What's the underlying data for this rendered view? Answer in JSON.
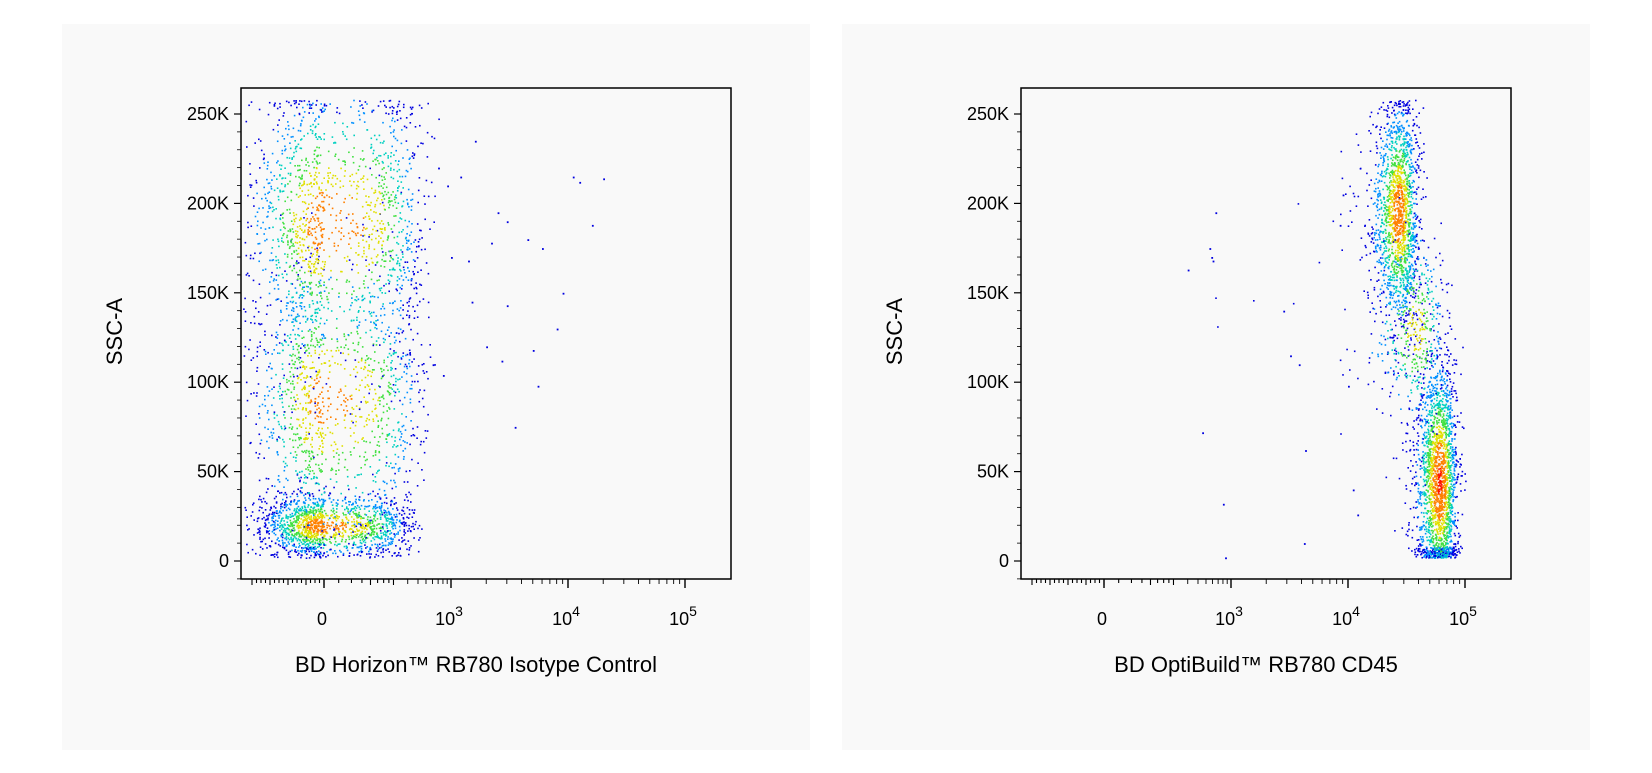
{
  "colors": {
    "panel_bg": "#f9f9f9",
    "plot_bg": "#f9f9f9",
    "density_scale": [
      "#0000e0",
      "#0090ff",
      "#00d0c0",
      "#40e040",
      "#e0e000",
      "#ff8000",
      "#ff1000"
    ]
  },
  "chart_data": [
    {
      "type": "scatter",
      "style": "pseudocolor density dot plot",
      "xlabel": "BD Horizon™ RB780 Isotype Control",
      "ylabel": "SSC-A",
      "x_scale": "biexponential",
      "xlim": [
        -400,
        200000
      ],
      "ylim": [
        -10000,
        262144
      ],
      "grid": false,
      "x_ticks": [
        {
          "value": 0,
          "base": "0",
          "exp": ""
        },
        {
          "value": 1000,
          "base": "10",
          "exp": "3"
        },
        {
          "value": 10000,
          "base": "10",
          "exp": "4"
        },
        {
          "value": 100000,
          "base": "10",
          "exp": "5"
        }
      ],
      "y_ticks": [
        {
          "value": 0,
          "label": "0"
        },
        {
          "value": 50000,
          "label": "50K"
        },
        {
          "value": 100000,
          "label": "100K"
        },
        {
          "value": 150000,
          "label": "150K"
        },
        {
          "value": 200000,
          "label": "200K"
        },
        {
          "value": 250000,
          "label": "250K"
        }
      ],
      "populations": [
        {
          "name": "",
          "x_center": -30,
          "x_spread": 160,
          "y_center": 20000,
          "y_spread": 9000,
          "weight": 0.35
        },
        {
          "name": "",
          "x_center": -20,
          "x_spread": 200,
          "y_center": 90000,
          "y_spread": 40000,
          "weight": 0.3
        },
        {
          "name": "",
          "x_center": -10,
          "x_spread": 210,
          "y_center": 190000,
          "y_spread": 40000,
          "weight": 0.35
        }
      ],
      "outliers": [
        [
          700,
          220000
        ],
        [
          900,
          210000
        ],
        [
          1200,
          215000
        ],
        [
          1600,
          235000
        ],
        [
          2500,
          195000
        ],
        [
          3000,
          190000
        ],
        [
          2200,
          178000
        ],
        [
          4500,
          180000
        ],
        [
          6000,
          175000
        ],
        [
          11000,
          215000
        ],
        [
          12500,
          212000
        ],
        [
          20000,
          214000
        ],
        [
          16000,
          188000
        ],
        [
          9000,
          150000
        ],
        [
          8000,
          130000
        ],
        [
          1500,
          145000
        ],
        [
          3000,
          143000
        ],
        [
          2000,
          120000
        ],
        [
          2700,
          112000
        ],
        [
          5000,
          118000
        ],
        [
          5500,
          98000
        ],
        [
          3500,
          75000
        ],
        [
          1000,
          170000
        ],
        [
          1400,
          168000
        ],
        [
          800,
          104000
        ],
        [
          600,
          110000
        ]
      ]
    },
    {
      "type": "scatter",
      "style": "pseudocolor density dot plot",
      "xlabel": "BD OptiBuild™ RB780 CD45",
      "ylabel": "SSC-A",
      "x_scale": "biexponential",
      "xlim": [
        -400,
        200000
      ],
      "ylim": [
        -10000,
        262144
      ],
      "grid": false,
      "x_ticks": [
        {
          "value": 0,
          "base": "0",
          "exp": ""
        },
        {
          "value": 1000,
          "base": "10",
          "exp": "3"
        },
        {
          "value": 10000,
          "base": "10",
          "exp": "4"
        },
        {
          "value": 100000,
          "base": "10",
          "exp": "5"
        }
      ],
      "y_ticks": [
        {
          "value": 0,
          "label": "0"
        },
        {
          "value": 50000,
          "label": "50K"
        },
        {
          "value": 100000,
          "label": "100K"
        },
        {
          "value": 150000,
          "label": "150K"
        },
        {
          "value": 200000,
          "label": "200K"
        },
        {
          "value": 250000,
          "label": "250K"
        }
      ],
      "populations": [
        {
          "name": "",
          "x_center": 27000,
          "x_spread": 6000,
          "y_center": 195000,
          "y_spread": 32000,
          "weight": 0.4
        },
        {
          "name": "",
          "x_center": 60000,
          "x_spread": 12000,
          "y_center": 45000,
          "y_spread": 35000,
          "weight": 0.5
        },
        {
          "name": "",
          "x_center": 38000,
          "x_spread": 14000,
          "y_center": 130000,
          "y_spread": 30000,
          "weight": 0.1
        }
      ],
      "outliers": [
        [
          300,
          163000
        ],
        [
          450,
          72000
        ],
        [
          550,
          175000
        ],
        [
          580,
          170000
        ],
        [
          650,
          195000
        ],
        [
          600,
          168000
        ],
        [
          800,
          32000
        ],
        [
          850,
          2000
        ],
        [
          2800,
          140000
        ],
        [
          3200,
          115000
        ],
        [
          3800,
          110000
        ],
        [
          4300,
          62000
        ],
        [
          4200,
          10000
        ],
        [
          12000,
          26000
        ],
        [
          11000,
          40000
        ],
        [
          10000,
          98000
        ],
        [
          9000,
          205000
        ],
        [
          8500,
          188000
        ]
      ]
    }
  ]
}
